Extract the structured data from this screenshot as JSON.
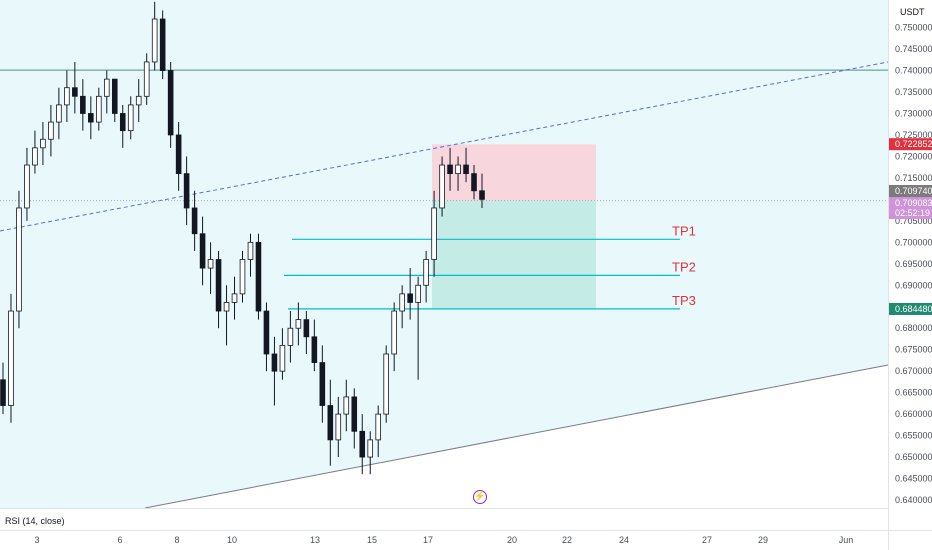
{
  "header": {
    "currency": "USDT"
  },
  "indicator": {
    "label": "RSI (14, close)"
  },
  "colors": {
    "channel_fill": "#e8f8fb",
    "upper_line": "#5b6bd6",
    "lower_line": "#787b86",
    "horizontal_line": "#4e8f86",
    "tp_line": "#00bcd4",
    "tp_text": "#e0323e",
    "stop_zone": "#f7d6dd",
    "profit_zone": "#c5ebe6",
    "candle": "#131722",
    "badge_red": "#e0323e",
    "badge_gray": "#7b7b7b",
    "badge_purple": "#ce93d8",
    "badge_green": "#1f8a70"
  },
  "icons": {
    "flash": "lightning-icon"
  },
  "price_badges": {
    "stop": "0.722852",
    "last": "0.709740",
    "mark": "0.709083",
    "countdown": "02:52:19",
    "tp3": "0.684480"
  },
  "chart_data": {
    "type": "candlestick",
    "y_axis": {
      "min": 0.64,
      "max": 0.752,
      "ticks": [
        "0.750000",
        "0.745000",
        "0.740000",
        "0.735000",
        "0.730000",
        "0.725000",
        "0.720000",
        "0.715000",
        "0.710000",
        "0.705000",
        "0.700000",
        "0.695000",
        "0.690000",
        "0.685000",
        "0.680000",
        "0.675000",
        "0.670000",
        "0.665000",
        "0.660000",
        "0.655000",
        "0.650000",
        "0.645000",
        "0.640000"
      ]
    },
    "x_axis": {
      "ticks": [
        "3",
        "6",
        "8",
        "10",
        "13",
        "15",
        "17",
        "20",
        "22",
        "24",
        "27",
        "29",
        "Jun"
      ]
    },
    "levels": {
      "horizontal": 0.7401,
      "entry": 0.7097,
      "stop": 0.7228,
      "tp": [
        {
          "label": "TP1",
          "price": 0.7007
        },
        {
          "label": "TP2",
          "price": 0.6923
        },
        {
          "label": "TP3",
          "price": 0.6845
        }
      ]
    },
    "candles": [
      [
        0.668,
        0.672,
        0.66,
        0.662
      ],
      [
        0.662,
        0.688,
        0.658,
        0.684
      ],
      [
        0.684,
        0.712,
        0.68,
        0.708
      ],
      [
        0.708,
        0.722,
        0.705,
        0.718
      ],
      [
        0.718,
        0.726,
        0.716,
        0.722
      ],
      [
        0.722,
        0.728,
        0.718,
        0.724
      ],
      [
        0.724,
        0.732,
        0.72,
        0.728
      ],
      [
        0.728,
        0.736,
        0.724,
        0.732
      ],
      [
        0.732,
        0.74,
        0.728,
        0.736
      ],
      [
        0.736,
        0.742,
        0.73,
        0.734
      ],
      [
        0.734,
        0.738,
        0.726,
        0.73
      ],
      [
        0.73,
        0.734,
        0.724,
        0.728
      ],
      [
        0.728,
        0.736,
        0.726,
        0.734
      ],
      [
        0.734,
        0.74,
        0.73,
        0.738
      ],
      [
        0.738,
        0.738,
        0.728,
        0.73
      ],
      [
        0.73,
        0.732,
        0.722,
        0.726
      ],
      [
        0.726,
        0.734,
        0.724,
        0.732
      ],
      [
        0.732,
        0.738,
        0.728,
        0.734
      ],
      [
        0.734,
        0.744,
        0.732,
        0.742
      ],
      [
        0.742,
        0.756,
        0.74,
        0.752
      ],
      [
        0.752,
        0.754,
        0.738,
        0.74
      ],
      [
        0.74,
        0.742,
        0.722,
        0.725
      ],
      [
        0.725,
        0.728,
        0.712,
        0.716
      ],
      [
        0.716,
        0.72,
        0.704,
        0.708
      ],
      [
        0.708,
        0.712,
        0.698,
        0.702
      ],
      [
        0.702,
        0.706,
        0.69,
        0.694
      ],
      [
        0.694,
        0.7,
        0.688,
        0.696
      ],
      [
        0.696,
        0.698,
        0.68,
        0.684
      ],
      [
        0.684,
        0.69,
        0.676,
        0.686
      ],
      [
        0.686,
        0.692,
        0.682,
        0.688
      ],
      [
        0.688,
        0.698,
        0.686,
        0.696
      ],
      [
        0.696,
        0.702,
        0.692,
        0.7
      ],
      [
        0.7,
        0.702,
        0.682,
        0.684
      ],
      [
        0.684,
        0.686,
        0.67,
        0.674
      ],
      [
        0.674,
        0.678,
        0.662,
        0.67
      ],
      [
        0.67,
        0.68,
        0.668,
        0.676
      ],
      [
        0.676,
        0.684,
        0.672,
        0.68
      ],
      [
        0.68,
        0.686,
        0.676,
        0.682
      ],
      [
        0.682,
        0.684,
        0.674,
        0.678
      ],
      [
        0.678,
        0.682,
        0.67,
        0.672
      ],
      [
        0.672,
        0.676,
        0.658,
        0.662
      ],
      [
        0.662,
        0.668,
        0.648,
        0.654
      ],
      [
        0.654,
        0.664,
        0.65,
        0.66
      ],
      [
        0.66,
        0.668,
        0.656,
        0.664
      ],
      [
        0.664,
        0.666,
        0.652,
        0.656
      ],
      [
        0.656,
        0.66,
        0.646,
        0.65
      ],
      [
        0.65,
        0.656,
        0.646,
        0.654
      ],
      [
        0.654,
        0.662,
        0.65,
        0.66
      ],
      [
        0.66,
        0.676,
        0.658,
        0.674
      ],
      [
        0.674,
        0.686,
        0.67,
        0.684
      ],
      [
        0.684,
        0.69,
        0.68,
        0.688
      ],
      [
        0.688,
        0.694,
        0.682,
        0.686
      ],
      [
        0.686,
        0.692,
        0.668,
        0.69
      ],
      [
        0.69,
        0.698,
        0.686,
        0.696
      ],
      [
        0.696,
        0.712,
        0.692,
        0.708
      ],
      [
        0.708,
        0.72,
        0.706,
        0.718
      ],
      [
        0.718,
        0.722,
        0.712,
        0.716
      ],
      [
        0.716,
        0.72,
        0.712,
        0.718
      ],
      [
        0.718,
        0.722,
        0.714,
        0.716
      ],
      [
        0.716,
        0.718,
        0.71,
        0.712
      ],
      [
        0.712,
        0.716,
        0.708,
        0.71
      ]
    ]
  }
}
